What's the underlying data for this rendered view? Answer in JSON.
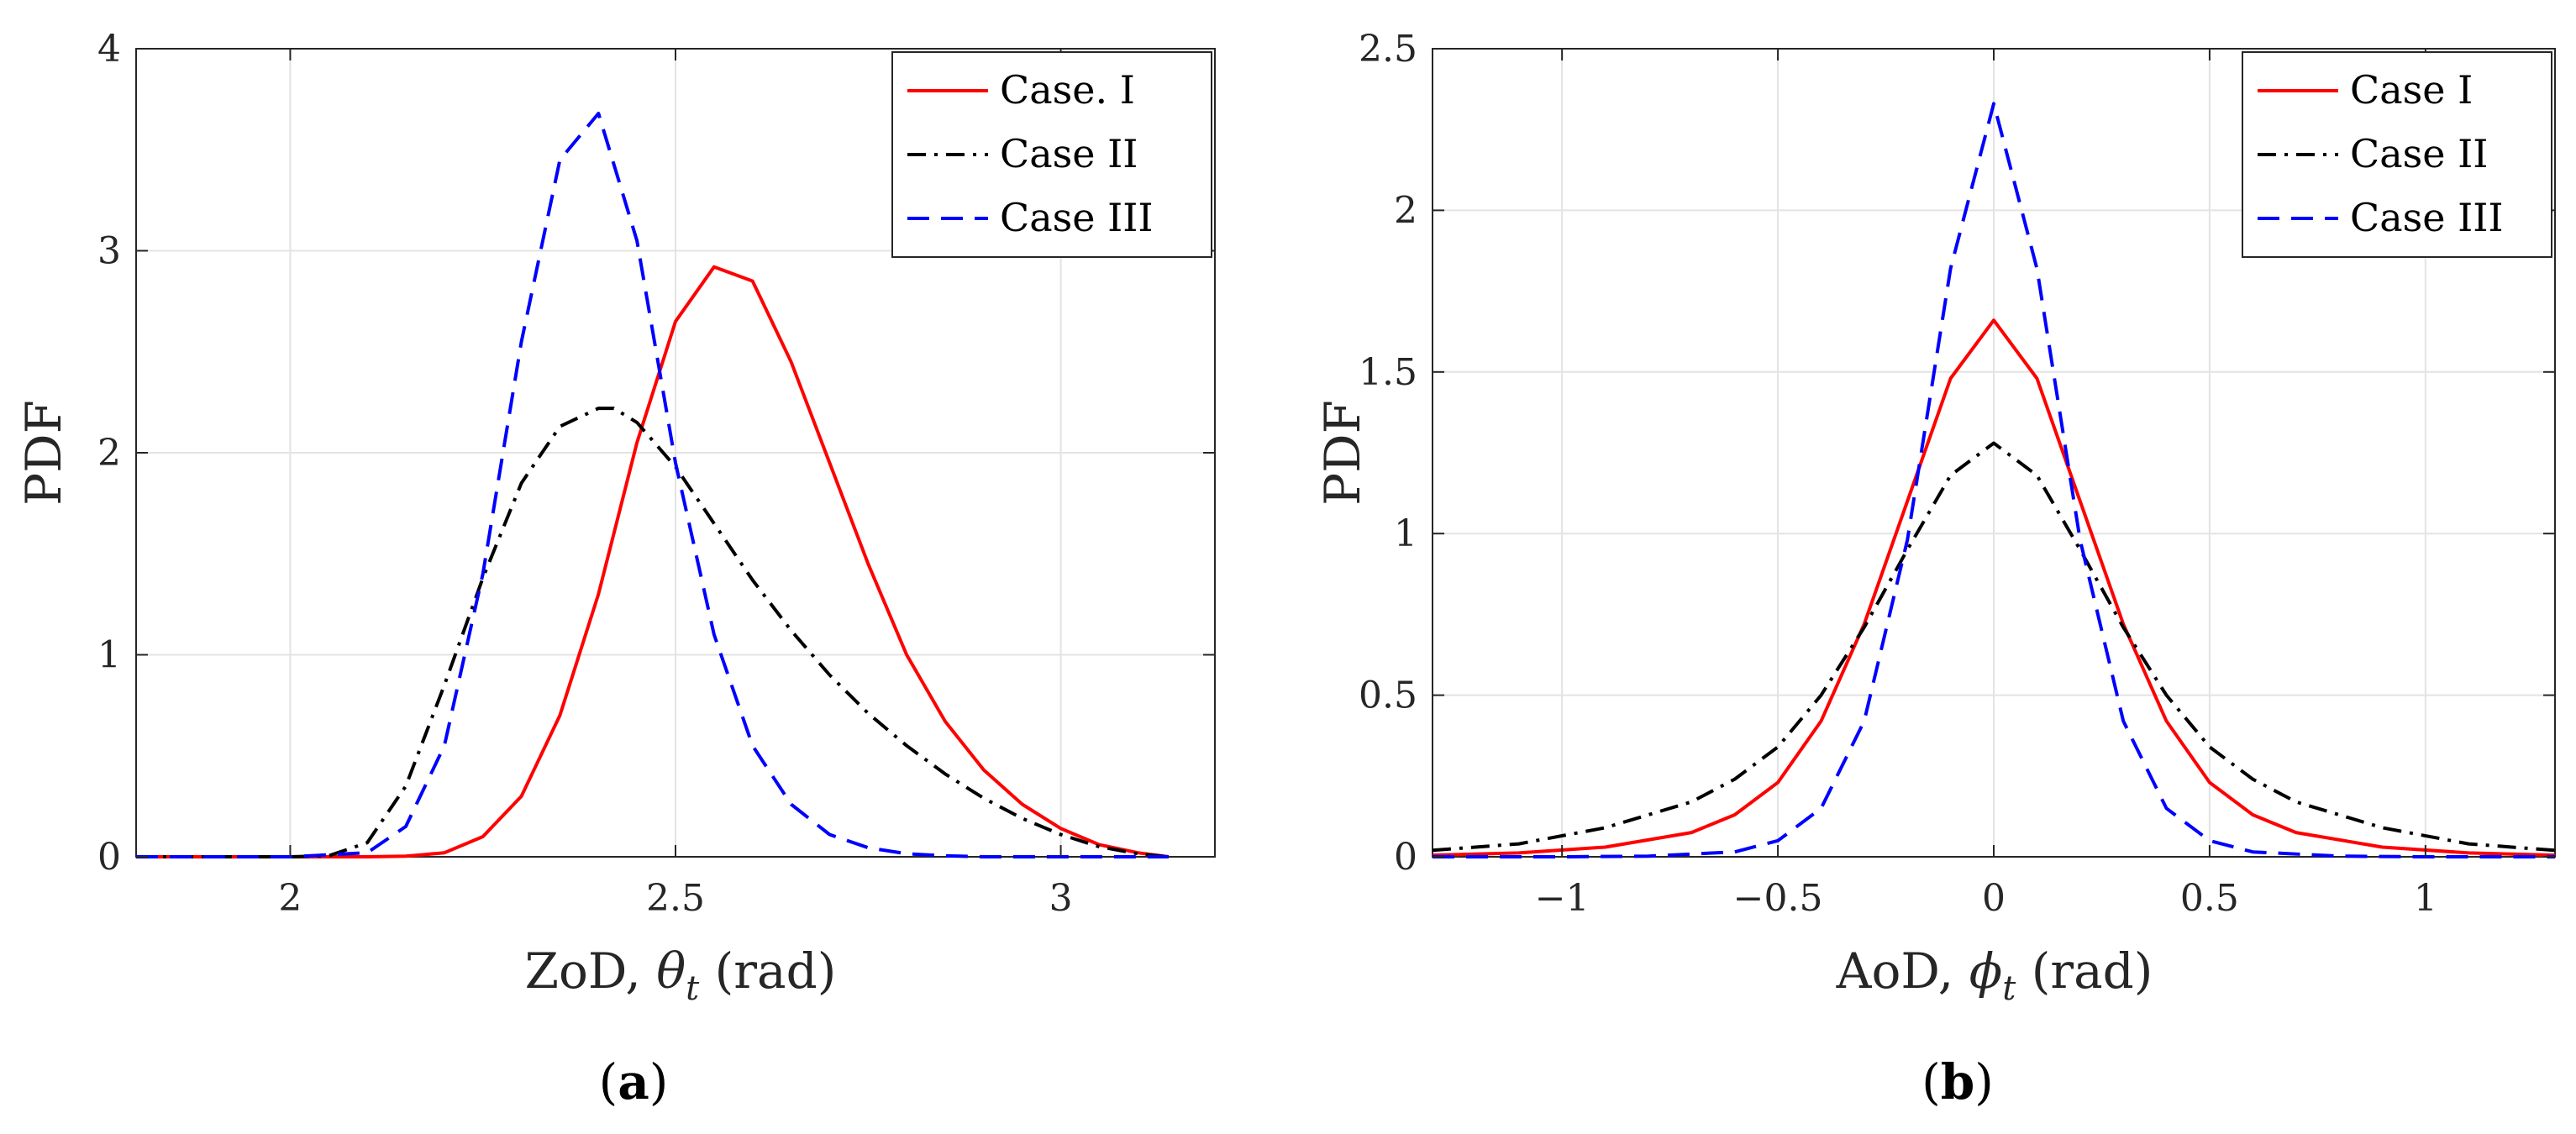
{
  "chart_data": [
    {
      "type": "line",
      "panel_label": "(a)",
      "panel_open": "(",
      "panel_letter": "a",
      "panel_close": ")",
      "xlabel_prefix": "ZoD, ",
      "xlabel_symbol": "θ",
      "xlabel_sub": "t",
      "xlabel_suffix": " (rad)",
      "ylabel": "PDF",
      "xlim": [
        1.8,
        3.2
      ],
      "ylim": [
        0,
        4
      ],
      "xticks": [
        2,
        2.5,
        3
      ],
      "xtick_labels": [
        "2",
        "2.5",
        "3"
      ],
      "yticks": [
        0,
        1,
        2,
        3,
        4
      ],
      "ytick_labels": [
        "0",
        "1",
        "2",
        "3",
        "4"
      ],
      "grid": true,
      "legend_position": "top-right",
      "series": [
        {
          "name": "Case. I",
          "color": "#ff0000",
          "style": "solid",
          "x": [
            1.8,
            2.0,
            2.1,
            2.15,
            2.2,
            2.25,
            2.3,
            2.35,
            2.4,
            2.45,
            2.5,
            2.55,
            2.6,
            2.65,
            2.7,
            2.75,
            2.8,
            2.85,
            2.9,
            2.95,
            3.0,
            3.05,
            3.1,
            3.14
          ],
          "y": [
            0,
            0,
            0,
            0.003,
            0.02,
            0.1,
            0.3,
            0.7,
            1.3,
            2.05,
            2.65,
            2.92,
            2.85,
            2.45,
            1.95,
            1.45,
            1.0,
            0.67,
            0.43,
            0.26,
            0.14,
            0.06,
            0.02,
            0
          ]
        },
        {
          "name": "Case II",
          "color": "#000000",
          "style": "dashdot",
          "x": [
            1.8,
            2.0,
            2.05,
            2.1,
            2.15,
            2.2,
            2.25,
            2.3,
            2.35,
            2.4,
            2.42,
            2.45,
            2.5,
            2.55,
            2.6,
            2.65,
            2.7,
            2.75,
            2.8,
            2.85,
            2.9,
            2.95,
            3.0,
            3.05,
            3.1,
            3.14
          ],
          "y": [
            0,
            0,
            0.005,
            0.07,
            0.35,
            0.85,
            1.38,
            1.85,
            2.13,
            2.22,
            2.22,
            2.15,
            1.93,
            1.65,
            1.37,
            1.12,
            0.9,
            0.71,
            0.55,
            0.41,
            0.29,
            0.19,
            0.11,
            0.05,
            0.015,
            0
          ]
        },
        {
          "name": "Case III",
          "color": "#0000ff",
          "style": "dashed",
          "x": [
            1.8,
            2.0,
            2.1,
            2.15,
            2.2,
            2.25,
            2.3,
            2.35,
            2.4,
            2.45,
            2.5,
            2.55,
            2.6,
            2.65,
            2.7,
            2.75,
            2.8,
            2.85,
            2.9,
            2.95,
            3.0,
            3.14
          ],
          "y": [
            0,
            0,
            0.02,
            0.15,
            0.55,
            1.4,
            2.55,
            3.45,
            3.68,
            3.05,
            1.95,
            1.1,
            0.55,
            0.26,
            0.11,
            0.045,
            0.015,
            0.005,
            0,
            0,
            0,
            0
          ]
        }
      ]
    },
    {
      "type": "line",
      "panel_label": "(b)",
      "panel_open": "(",
      "panel_letter": "b",
      "panel_close": ")",
      "xlabel_prefix": "AoD, ",
      "xlabel_symbol": "ϕ",
      "xlabel_sub": "t",
      "xlabel_suffix": " (rad)",
      "ylabel": "PDF",
      "xlim": [
        -1.3,
        1.3
      ],
      "ylim": [
        0,
        2.5
      ],
      "xticks": [
        -1,
        -0.5,
        0,
        0.5,
        1
      ],
      "xtick_labels": [
        "−1",
        "−0.5",
        "0",
        "0.5",
        "1"
      ],
      "yticks": [
        0,
        0.5,
        1,
        1.5,
        2,
        2.5
      ],
      "ytick_labels": [
        "0",
        "0.5",
        "1",
        "1.5",
        "2",
        "2.5"
      ],
      "grid": true,
      "legend_position": "top-right",
      "series": [
        {
          "name": "Case I",
          "color": "#ff0000",
          "style": "solid",
          "x": [
            -1.3,
            -1.1,
            -0.9,
            -0.7,
            -0.6,
            -0.5,
            -0.4,
            -0.3,
            -0.2,
            -0.1,
            0,
            0.1,
            0.2,
            0.3,
            0.4,
            0.5,
            0.6,
            0.7,
            0.9,
            1.1,
            1.3
          ],
          "y": [
            0.005,
            0.012,
            0.03,
            0.075,
            0.13,
            0.23,
            0.42,
            0.72,
            1.1,
            1.48,
            1.66,
            1.48,
            1.1,
            0.72,
            0.42,
            0.23,
            0.13,
            0.075,
            0.03,
            0.012,
            0.005
          ]
        },
        {
          "name": "Case II",
          "color": "#000000",
          "style": "dashdot",
          "x": [
            -1.3,
            -1.1,
            -0.9,
            -0.7,
            -0.6,
            -0.5,
            -0.4,
            -0.3,
            -0.2,
            -0.1,
            0,
            0.1,
            0.2,
            0.3,
            0.4,
            0.5,
            0.6,
            0.7,
            0.9,
            1.1,
            1.3
          ],
          "y": [
            0.02,
            0.04,
            0.09,
            0.17,
            0.24,
            0.34,
            0.5,
            0.71,
            0.95,
            1.18,
            1.28,
            1.18,
            0.95,
            0.71,
            0.5,
            0.34,
            0.24,
            0.17,
            0.09,
            0.04,
            0.02
          ]
        },
        {
          "name": "Case III",
          "color": "#0000ff",
          "style": "dashed",
          "x": [
            -1.3,
            -1.0,
            -0.8,
            -0.6,
            -0.5,
            -0.4,
            -0.3,
            -0.2,
            -0.1,
            0,
            0.1,
            0.2,
            0.3,
            0.4,
            0.5,
            0.6,
            0.8,
            1.0,
            1.3
          ],
          "y": [
            0,
            0,
            0.002,
            0.015,
            0.05,
            0.15,
            0.42,
            0.98,
            1.82,
            2.33,
            1.82,
            0.98,
            0.42,
            0.15,
            0.05,
            0.015,
            0.002,
            0,
            0
          ]
        }
      ]
    }
  ]
}
